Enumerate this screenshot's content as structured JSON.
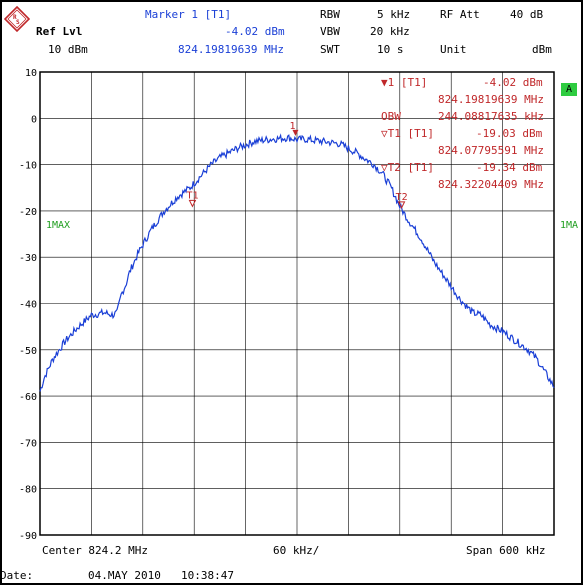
{
  "header": {
    "marker_title": "Marker 1 [T1]",
    "ref_lvl_label": "Ref Lvl",
    "ref_lvl_value": "10 dBm",
    "marker_level": "-4.02 dBm",
    "marker_freq": "824.19819639 MHz",
    "rbw_label": "RBW",
    "rbw_value": "5 kHz",
    "vbw_label": "VBW",
    "vbw_value": "20 kHz",
    "swt_label": "SWT",
    "swt_value": "10 s",
    "rf_att_label": "RF Att",
    "rf_att_value": "40 dB",
    "unit_label": "Unit",
    "unit_value": "dBm"
  },
  "markers": {
    "m1_label": "1 [T1]",
    "m1_level": "-4.02 dBm",
    "m1_freq": "824.19819639 MHz",
    "obw_label": "OBW",
    "obw_value": "244.08817635 kHz",
    "t1_label": "T1 [T1]",
    "t1_level": "-19.03 dBm",
    "t1_freq": "824.07795591 MHz",
    "t2_label": "T2 [T1]",
    "t2_level": "-19.34 dBm",
    "t2_freq": "824.32204409 MHz"
  },
  "side": {
    "left_max": "1MAX",
    "right_max": "1MA",
    "badge": "A"
  },
  "footer": {
    "center": "Center 824.2 MHz",
    "div": "60 kHz/",
    "span": "Span 600 kHz",
    "date_label": "Date:",
    "date_value": "04.MAY 2010",
    "time_value": "10:38:47"
  },
  "colors": {
    "trace": "#1a3fd6",
    "marker": "#c0282a",
    "grid": "#000000"
  },
  "chart_data": {
    "type": "line",
    "title": "",
    "xlabel": "",
    "ylabel": "",
    "xlim": [
      823.9,
      824.5
    ],
    "ylim": [
      -90,
      10
    ],
    "grid": true,
    "y_ticks": [
      "10",
      "0",
      "-10",
      "-20",
      "-30",
      "-40",
      "-50",
      "-60",
      "-70",
      "-80",
      "-90"
    ],
    "series": [
      {
        "x": [
          823.9,
          823.905,
          823.915,
          823.93,
          823.945,
          823.96,
          823.975,
          823.985,
          823.99,
          823.995,
          824.0,
          824.005,
          824.015,
          824.03,
          824.045,
          824.06,
          824.075,
          824.09,
          824.1,
          824.11,
          824.13,
          824.15,
          824.17,
          824.19,
          824.2,
          824.21,
          824.23,
          824.25,
          824.27,
          824.28,
          824.29,
          824.3,
          824.31,
          824.32,
          824.33,
          824.345,
          824.36,
          824.375,
          824.39,
          824.4,
          824.405,
          824.415,
          824.425,
          824.44,
          824.455,
          824.47,
          824.48,
          824.49,
          824.5
        ],
        "y": [
          -59,
          -56,
          -52,
          -48,
          -45,
          -42.5,
          -42,
          -42.5,
          -42,
          -38,
          -36,
          -33,
          -29,
          -24,
          -20,
          -17,
          -15,
          -12,
          -10,
          -8.5,
          -6.5,
          -5,
          -4.5,
          -4.2,
          -4.6,
          -4.5,
          -5,
          -5.5,
          -7.5,
          -8.8,
          -10,
          -12,
          -15,
          -19,
          -22,
          -26,
          -31,
          -35,
          -39,
          -41,
          -42,
          -42.5,
          -44.5,
          -46,
          -48,
          -50,
          -52,
          -55,
          -58
        ]
      }
    ],
    "markers": [
      {
        "name": "1",
        "x": 824.19819639,
        "y": -4.02
      },
      {
        "name": "T1",
        "x": 824.07795591,
        "y": -19.03
      },
      {
        "name": "T2",
        "x": 824.32204409,
        "y": -19.34
      }
    ]
  }
}
